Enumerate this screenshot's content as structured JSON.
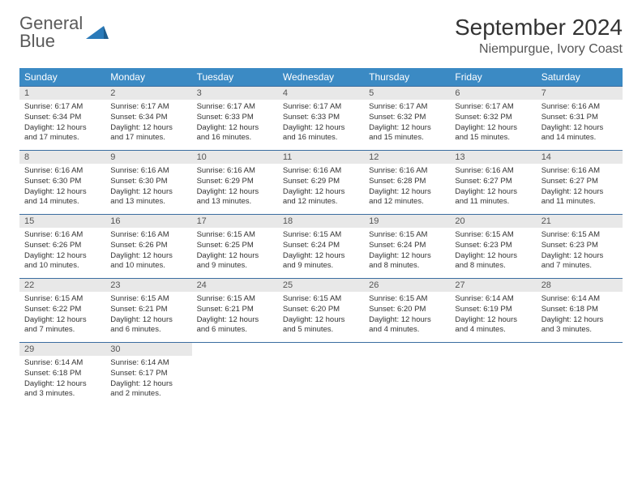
{
  "logo": {
    "line1": "General",
    "line2": "Blue"
  },
  "title": "September 2024",
  "location": "Niempurgue, Ivory Coast",
  "colors": {
    "header_bg": "#3b8ac4",
    "header_text": "#ffffff",
    "row_border": "#3b6da0",
    "daynum_bg": "#e8e8e8",
    "logo_gray": "#5a5a5a",
    "logo_blue": "#2a7ab9"
  },
  "weekdays": [
    "Sunday",
    "Monday",
    "Tuesday",
    "Wednesday",
    "Thursday",
    "Friday",
    "Saturday"
  ],
  "weeks": [
    [
      {
        "n": "1",
        "sr": "6:17 AM",
        "ss": "6:34 PM",
        "dl": "12 hours and 17 minutes."
      },
      {
        "n": "2",
        "sr": "6:17 AM",
        "ss": "6:34 PM",
        "dl": "12 hours and 17 minutes."
      },
      {
        "n": "3",
        "sr": "6:17 AM",
        "ss": "6:33 PM",
        "dl": "12 hours and 16 minutes."
      },
      {
        "n": "4",
        "sr": "6:17 AM",
        "ss": "6:33 PM",
        "dl": "12 hours and 16 minutes."
      },
      {
        "n": "5",
        "sr": "6:17 AM",
        "ss": "6:32 PM",
        "dl": "12 hours and 15 minutes."
      },
      {
        "n": "6",
        "sr": "6:17 AM",
        "ss": "6:32 PM",
        "dl": "12 hours and 15 minutes."
      },
      {
        "n": "7",
        "sr": "6:16 AM",
        "ss": "6:31 PM",
        "dl": "12 hours and 14 minutes."
      }
    ],
    [
      {
        "n": "8",
        "sr": "6:16 AM",
        "ss": "6:30 PM",
        "dl": "12 hours and 14 minutes."
      },
      {
        "n": "9",
        "sr": "6:16 AM",
        "ss": "6:30 PM",
        "dl": "12 hours and 13 minutes."
      },
      {
        "n": "10",
        "sr": "6:16 AM",
        "ss": "6:29 PM",
        "dl": "12 hours and 13 minutes."
      },
      {
        "n": "11",
        "sr": "6:16 AM",
        "ss": "6:29 PM",
        "dl": "12 hours and 12 minutes."
      },
      {
        "n": "12",
        "sr": "6:16 AM",
        "ss": "6:28 PM",
        "dl": "12 hours and 12 minutes."
      },
      {
        "n": "13",
        "sr": "6:16 AM",
        "ss": "6:27 PM",
        "dl": "12 hours and 11 minutes."
      },
      {
        "n": "14",
        "sr": "6:16 AM",
        "ss": "6:27 PM",
        "dl": "12 hours and 11 minutes."
      }
    ],
    [
      {
        "n": "15",
        "sr": "6:16 AM",
        "ss": "6:26 PM",
        "dl": "12 hours and 10 minutes."
      },
      {
        "n": "16",
        "sr": "6:16 AM",
        "ss": "6:26 PM",
        "dl": "12 hours and 10 minutes."
      },
      {
        "n": "17",
        "sr": "6:15 AM",
        "ss": "6:25 PM",
        "dl": "12 hours and 9 minutes."
      },
      {
        "n": "18",
        "sr": "6:15 AM",
        "ss": "6:24 PM",
        "dl": "12 hours and 9 minutes."
      },
      {
        "n": "19",
        "sr": "6:15 AM",
        "ss": "6:24 PM",
        "dl": "12 hours and 8 minutes."
      },
      {
        "n": "20",
        "sr": "6:15 AM",
        "ss": "6:23 PM",
        "dl": "12 hours and 8 minutes."
      },
      {
        "n": "21",
        "sr": "6:15 AM",
        "ss": "6:23 PM",
        "dl": "12 hours and 7 minutes."
      }
    ],
    [
      {
        "n": "22",
        "sr": "6:15 AM",
        "ss": "6:22 PM",
        "dl": "12 hours and 7 minutes."
      },
      {
        "n": "23",
        "sr": "6:15 AM",
        "ss": "6:21 PM",
        "dl": "12 hours and 6 minutes."
      },
      {
        "n": "24",
        "sr": "6:15 AM",
        "ss": "6:21 PM",
        "dl": "12 hours and 6 minutes."
      },
      {
        "n": "25",
        "sr": "6:15 AM",
        "ss": "6:20 PM",
        "dl": "12 hours and 5 minutes."
      },
      {
        "n": "26",
        "sr": "6:15 AM",
        "ss": "6:20 PM",
        "dl": "12 hours and 4 minutes."
      },
      {
        "n": "27",
        "sr": "6:14 AM",
        "ss": "6:19 PM",
        "dl": "12 hours and 4 minutes."
      },
      {
        "n": "28",
        "sr": "6:14 AM",
        "ss": "6:18 PM",
        "dl": "12 hours and 3 minutes."
      }
    ],
    [
      {
        "n": "29",
        "sr": "6:14 AM",
        "ss": "6:18 PM",
        "dl": "12 hours and 3 minutes."
      },
      {
        "n": "30",
        "sr": "6:14 AM",
        "ss": "6:17 PM",
        "dl": "12 hours and 2 minutes."
      },
      {
        "empty": true
      },
      {
        "empty": true
      },
      {
        "empty": true
      },
      {
        "empty": true
      },
      {
        "empty": true
      }
    ]
  ],
  "labels": {
    "sunrise": "Sunrise:",
    "sunset": "Sunset:",
    "daylight": "Daylight:"
  }
}
